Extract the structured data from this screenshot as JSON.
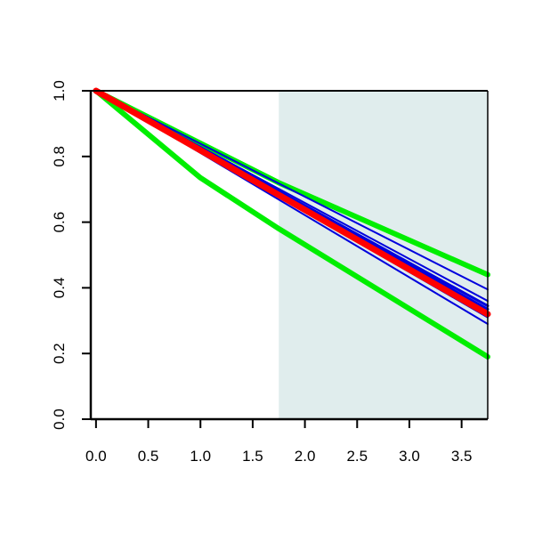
{
  "chart_data": {
    "type": "line",
    "title": "",
    "xlabel": "",
    "ylabel": "",
    "xlim": [
      -0.05,
      3.75
    ],
    "ylim": [
      0.0,
      1.0
    ],
    "xticks": [
      0.0,
      0.5,
      1.0,
      1.5,
      2.0,
      2.5,
      3.0,
      3.5
    ],
    "xtick_labels": [
      "0.0",
      "0.5",
      "1.0",
      "1.5",
      "2.0",
      "2.5",
      "3.0",
      "3.5"
    ],
    "yticks": [
      0.0,
      0.2,
      0.4,
      0.6,
      0.8,
      1.0
    ],
    "ytick_labels": [
      "0.0",
      "0.2",
      "0.4",
      "0.6",
      "0.8",
      "1.0"
    ],
    "grid": false,
    "legend": "none",
    "shaded_region": {
      "x": [
        1.75,
        3.75
      ],
      "color": "#e0eded"
    },
    "colors": {
      "blue": "#0000dd",
      "red": "#ff0000",
      "green": "#00ee00",
      "axis": "#000000"
    },
    "series": [
      {
        "role": "green-upper",
        "color": "#00ee00",
        "width": 6,
        "x": [
          0,
          1.75,
          3.75
        ],
        "y": [
          1.0,
          0.72,
          0.44
        ]
      },
      {
        "role": "green-lower",
        "color": "#00ee00",
        "width": 6,
        "x": [
          0,
          1.0,
          1.75,
          3.75
        ],
        "y": [
          1.0,
          0.735,
          0.58,
          0.19
        ]
      },
      {
        "role": "blue-1",
        "color": "#0000dd",
        "width": 2,
        "x": [
          0,
          3.75
        ],
        "y": [
          1.0,
          0.395
        ]
      },
      {
        "role": "blue-2",
        "color": "#0000dd",
        "width": 2,
        "x": [
          0,
          3.75
        ],
        "y": [
          1.0,
          0.29
        ]
      },
      {
        "role": "blue-3",
        "color": "#0000dd",
        "width": 2,
        "x": [
          0,
          3.75
        ],
        "y": [
          1.0,
          0.31
        ]
      },
      {
        "role": "blue-4",
        "color": "#0000dd",
        "width": 2,
        "x": [
          0,
          3.75
        ],
        "y": [
          1.0,
          0.36
        ]
      },
      {
        "role": "blue-5",
        "color": "#0000dd",
        "width": 3,
        "x": [
          0,
          3.75
        ],
        "y": [
          1.0,
          0.345
        ]
      },
      {
        "role": "blue-6",
        "color": "#0000dd",
        "width": 3,
        "x": [
          0,
          3.75
        ],
        "y": [
          1.0,
          0.335
        ]
      },
      {
        "role": "red",
        "color": "#ff0000",
        "width": 7,
        "x": [
          0,
          3.75
        ],
        "y": [
          1.0,
          0.32
        ]
      }
    ]
  }
}
